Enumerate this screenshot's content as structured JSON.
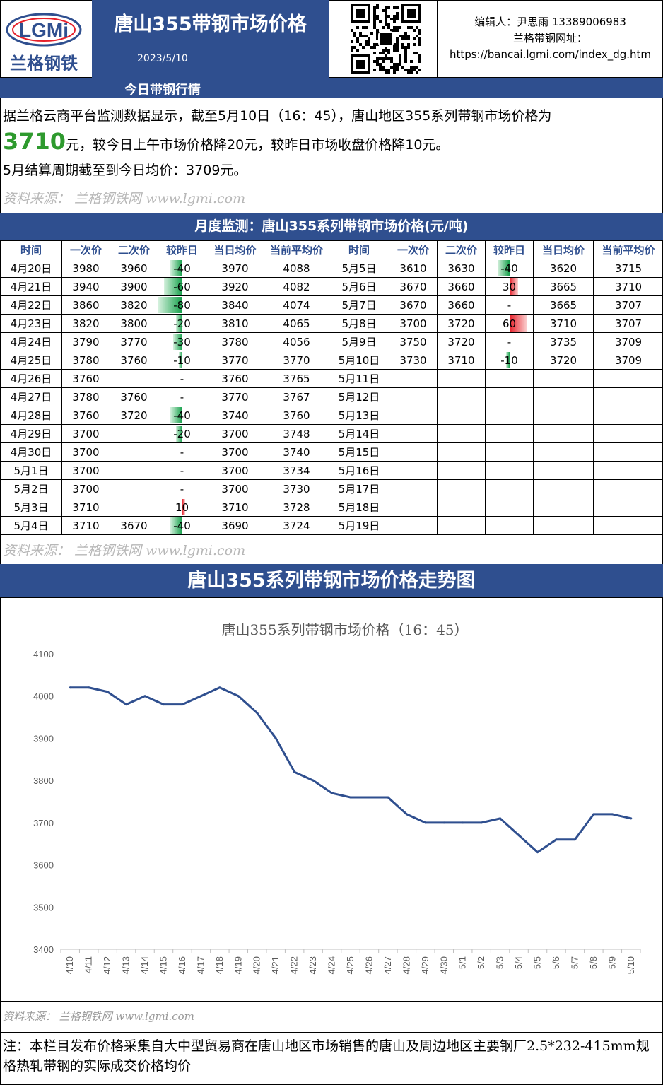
{
  "header": {
    "logo_text": "LGMi",
    "logo_cn": "兰格钢铁",
    "title": "唐山355带钢市场价格",
    "date": "2023/5/10",
    "editor": "编辑人：尹思雨 13389006983",
    "site_label": "兰格带钢网址：",
    "site_url": "https://bancai.lgmi.com/index_dg.htm"
  },
  "today": {
    "section_title": "今日带钢行情",
    "line1": "据兰格云商平台监测数据显示，截至5月10日（16：45），唐山地区355系列带钢市场价格为",
    "price": "3710",
    "line2_rest": "元，较今日上午市场价格降20元，较昨日市场收盘价格降10元。",
    "line3": "5月结算周期截至到今日均价：3709元。",
    "source": "资料来源： 兰格钢铁网 www.lgmi.com"
  },
  "monthly": {
    "title": "月度监测：唐山355系列带钢市场价格(元/吨)",
    "headers": [
      "时间",
      "一次价",
      "二次价",
      "较昨日",
      "当日均价",
      "当前平均价",
      "时间",
      "一次价",
      "二次价",
      "较昨日",
      "当日均价",
      "当前平均价"
    ],
    "rows": [
      [
        [
          "4月20日",
          "3980",
          "3960",
          "-40",
          "3970",
          "4088"
        ],
        [
          "5月5日",
          "3610",
          "3630",
          "-40",
          "3620",
          "3715"
        ]
      ],
      [
        [
          "4月21日",
          "3940",
          "3900",
          "-60",
          "3920",
          "4082"
        ],
        [
          "5月6日",
          "3670",
          "3660",
          "30",
          "3665",
          "3710"
        ]
      ],
      [
        [
          "4月22日",
          "3860",
          "3820",
          "-80",
          "3840",
          "4074"
        ],
        [
          "5月7日",
          "3670",
          "3660",
          "-",
          "3665",
          "3707"
        ]
      ],
      [
        [
          "4月23日",
          "3820",
          "3800",
          "-20",
          "3810",
          "4065"
        ],
        [
          "5月8日",
          "3700",
          "3720",
          "60",
          "3710",
          "3707"
        ]
      ],
      [
        [
          "4月24日",
          "3790",
          "3770",
          "-30",
          "3780",
          "4056"
        ],
        [
          "5月9日",
          "3750",
          "3720",
          "-",
          "3735",
          "3709"
        ]
      ],
      [
        [
          "4月25日",
          "3780",
          "3760",
          "-10",
          "3770",
          "3770"
        ],
        [
          "5月10日",
          "3730",
          "3710",
          "-10",
          "3720",
          "3709"
        ]
      ],
      [
        [
          "4月26日",
          "3760",
          "",
          "-",
          "3760",
          "3765"
        ],
        [
          "5月11日",
          "",
          "",
          "",
          "",
          ""
        ]
      ],
      [
        [
          "4月27日",
          "3780",
          "3760",
          "-",
          "3770",
          "3767"
        ],
        [
          "5月12日",
          "",
          "",
          "",
          "",
          ""
        ]
      ],
      [
        [
          "4月28日",
          "3760",
          "3720",
          "-40",
          "3740",
          "3760"
        ],
        [
          "5月13日",
          "",
          "",
          "",
          "",
          ""
        ]
      ],
      [
        [
          "4月29日",
          "3700",
          "",
          "-20",
          "3700",
          "3748"
        ],
        [
          "5月14日",
          "",
          "",
          "",
          "",
          ""
        ]
      ],
      [
        [
          "4月30日",
          "3700",
          "",
          "-",
          "3700",
          "3740"
        ],
        [
          "5月15日",
          "",
          "",
          "",
          "",
          ""
        ]
      ],
      [
        [
          "5月1日",
          "3700",
          "",
          "-",
          "3700",
          "3734"
        ],
        [
          "5月16日",
          "",
          "",
          "",
          "",
          ""
        ]
      ],
      [
        [
          "5月2日",
          "3700",
          "",
          "-",
          "3700",
          "3730"
        ],
        [
          "5月17日",
          "",
          "",
          "",
          "",
          ""
        ]
      ],
      [
        [
          "5月3日",
          "3710",
          "",
          "10",
          "3710",
          "3728"
        ],
        [
          "5月18日",
          "",
          "",
          "",
          "",
          ""
        ]
      ],
      [
        [
          "5月4日",
          "3710",
          "3670",
          "-40",
          "3690",
          "3724"
        ],
        [
          "5月19日",
          "",
          "",
          "",
          "",
          ""
        ]
      ]
    ],
    "source": "资料来源： 兰格钢铁网 www.lgmi.com"
  },
  "trend": {
    "section_title": "唐山355系列带钢市场价格走势图",
    "source": "资料来源： 兰格钢铁网 www.lgmi.com"
  },
  "chart_data": {
    "type": "line",
    "title": "唐山355系列带钢市场价格（16：45）",
    "xlabel": "",
    "ylabel": "",
    "ylim": [
      3400,
      4100
    ],
    "yticks": [
      3400,
      3500,
      3600,
      3700,
      3800,
      3900,
      4000,
      4100
    ],
    "grid": false,
    "line_color": "#2f4f8f",
    "x": [
      "4/10",
      "4/11",
      "4/12",
      "4/13",
      "4/14",
      "4/15",
      "4/16",
      "4/17",
      "4/18",
      "4/19",
      "4/20",
      "4/21",
      "4/22",
      "4/23",
      "4/24",
      "4/25",
      "4/26",
      "4/27",
      "4/28",
      "4/29",
      "4/30",
      "5/1",
      "5/2",
      "5/3",
      "5/4",
      "5/5",
      "5/6",
      "5/7",
      "5/8",
      "5/9",
      "5/10"
    ],
    "series": [
      {
        "values": [
          4020,
          4020,
          4010,
          3980,
          4000,
          3980,
          3980,
          4000,
          4020,
          4000,
          3960,
          3900,
          3820,
          3800,
          3770,
          3760,
          3760,
          3760,
          3720,
          3700,
          3700,
          3700,
          3700,
          3710,
          3670,
          3630,
          3660,
          3660,
          3720,
          3720,
          3710
        ]
      }
    ]
  },
  "note": "注：本栏目发布价格采集自大中型贸易商在唐山地区市场销售的唐山及周边地区主要钢厂2.5*232-415mm规格热轧带钢的实际成交价格均价",
  "colors": {
    "brand_blue": "#2f4f8f",
    "up_red": "#e6202a",
    "down_green": "#14a04a",
    "price_green": "#2e9a2e"
  }
}
